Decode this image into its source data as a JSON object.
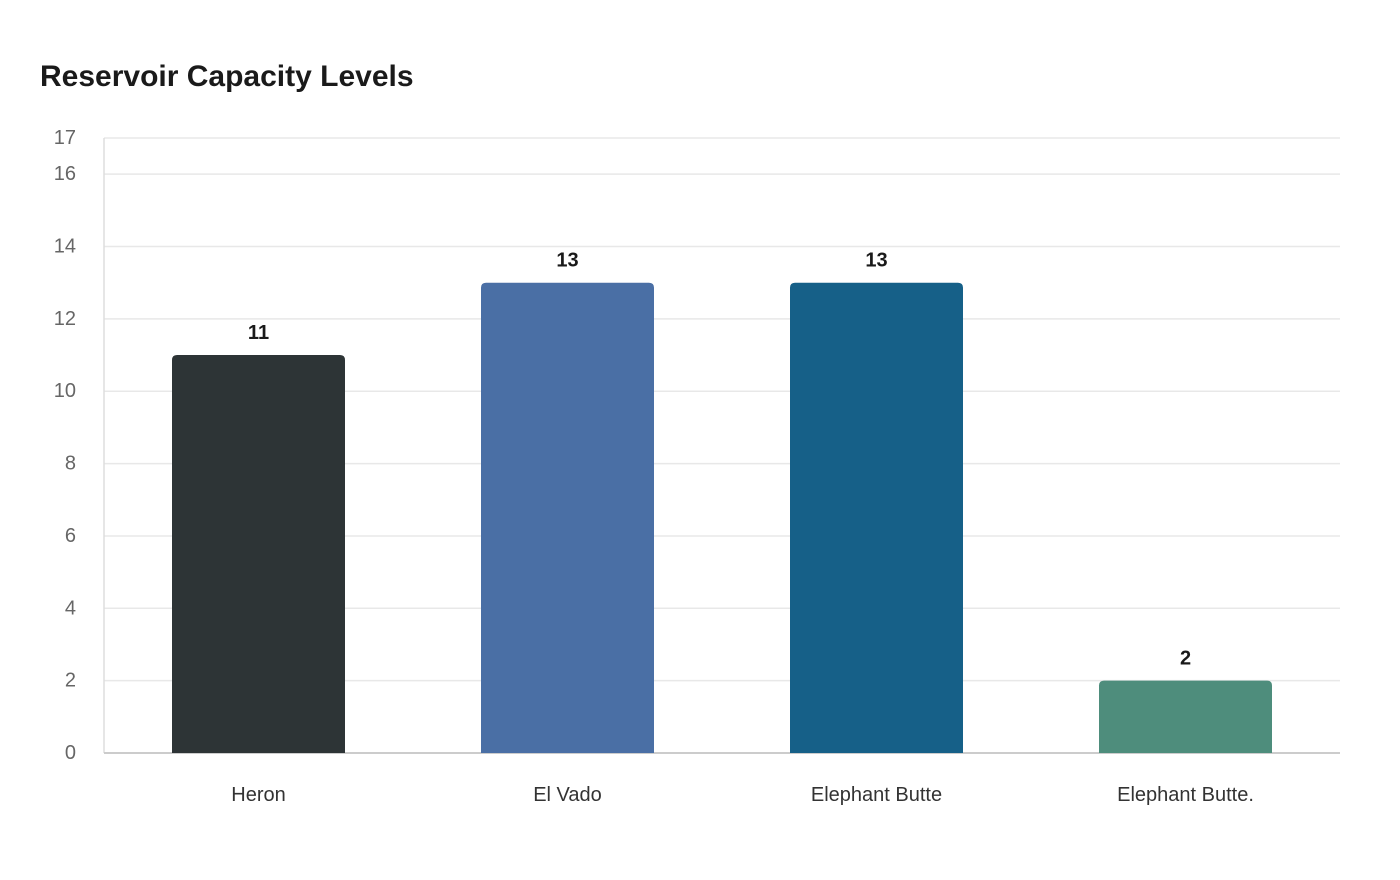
{
  "chart_data": {
    "type": "bar",
    "title": "Reservoir Capacity Levels",
    "xlabel": "",
    "ylabel": "",
    "categories": [
      "Heron",
      "El Vado",
      "Elephant Butte",
      "Elephant Butte."
    ],
    "values": [
      11,
      13,
      13,
      2
    ],
    "colors": [
      "#2d3436",
      "#4a6fa5",
      "#166088",
      "#4e8d7c"
    ],
    "ylim": [
      0,
      17
    ],
    "yticks": [
      0,
      2,
      4,
      6,
      8,
      10,
      12,
      14,
      16,
      17
    ],
    "grid": true,
    "data_labels": true
  }
}
